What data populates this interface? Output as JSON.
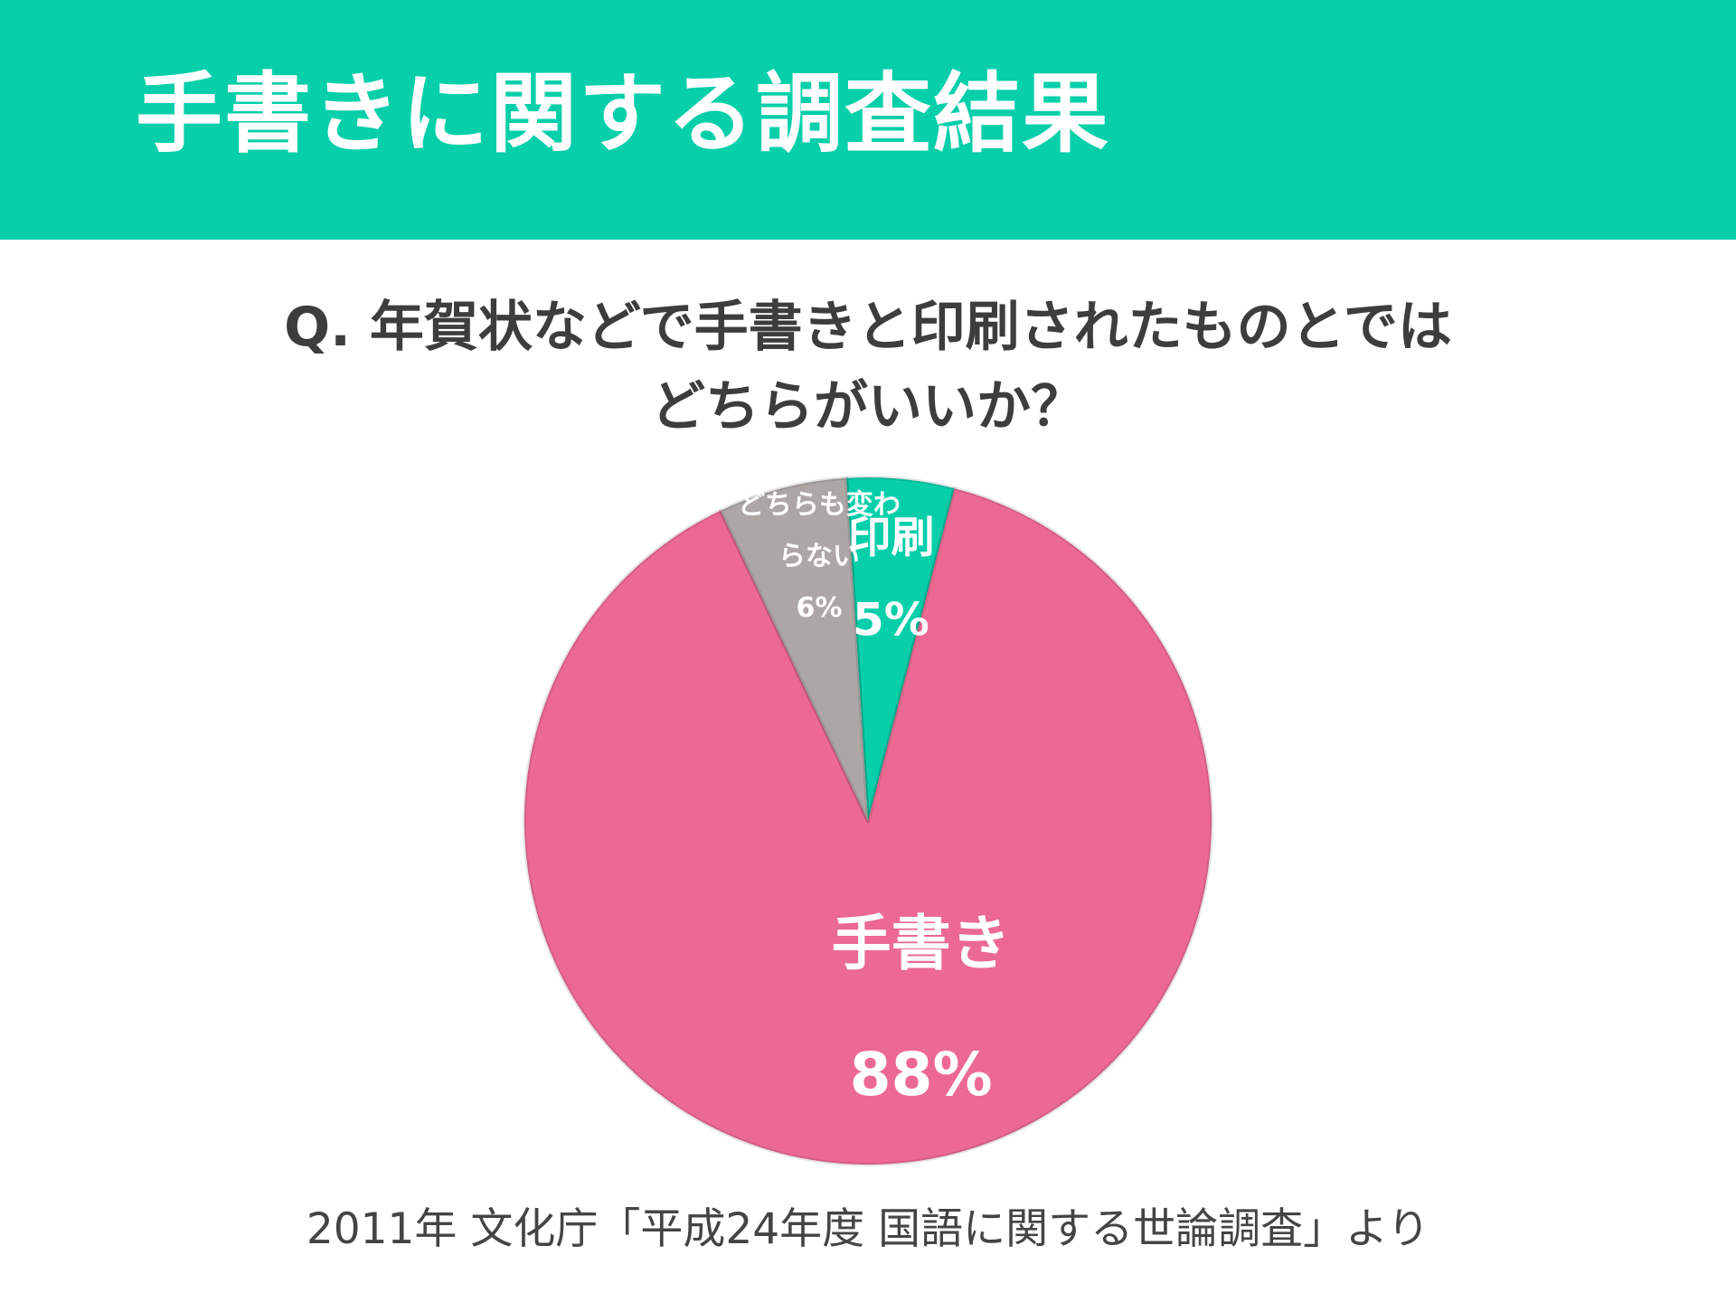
{
  "header": {
    "title": "手書きに関する調査結果"
  },
  "question": {
    "line1": "Q. 年賀状などで手書きと印刷されたものとでは",
    "line2": "どちらがいいか？"
  },
  "chart_data": {
    "type": "pie",
    "start_angle_deg": -3.6,
    "direction": "clockwise",
    "slices": [
      {
        "label": "印刷",
        "label_lines": [
          "印刷"
        ],
        "value": 5,
        "value_label": "5%",
        "color": "#06cfaa"
      },
      {
        "label": "手書き",
        "label_lines": [
          "手書き"
        ],
        "value": 88,
        "value_label": "88%",
        "color": "#ec6994"
      },
      {
        "label": "どちらも変わらない",
        "label_lines": [
          "どちらも変わ",
          "らない"
        ],
        "value": 6,
        "value_label": "6%",
        "color": "#aca7a5"
      }
    ]
  },
  "source": "2011年 文化庁「平成24年度 国語に関する世論調査」より"
}
